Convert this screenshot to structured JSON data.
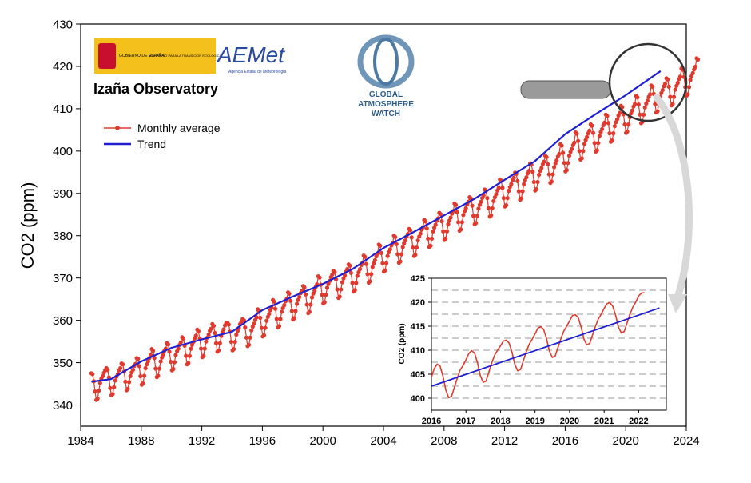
{
  "logos": {
    "gobierno": "GOBIERNO DE ESPAÑA",
    "ministerio": "MINISTERIO PARA LA TRANSICIÓN ECOLÓGICA",
    "aemet": "AEMet",
    "aemet_sub": "Agencia Estatal de Meteorología",
    "gaw": [
      "GLOBAL",
      "ATMOSPHERE",
      "WATCH"
    ]
  },
  "chart_data": [
    {
      "type": "line",
      "title": "Izaña Observatory",
      "xlabel": "",
      "ylabel": "CO2 (ppm)",
      "xlim": [
        1984,
        2024
      ],
      "ylim": [
        335,
        430
      ],
      "xticks": [
        1984,
        1988,
        1992,
        1996,
        2000,
        2004,
        2008,
        2012,
        2016,
        2020,
        2024
      ],
      "yticks": [
        340,
        350,
        360,
        370,
        380,
        390,
        400,
        410,
        420,
        430
      ],
      "legend_position": "top-left",
      "grid": false,
      "series": [
        {
          "name": "Monthly average",
          "color": "#e03a2f",
          "marker": "circle",
          "x_start": 1984.7,
          "x_step": 0.0833,
          "values": [
            347.5,
            347.3,
            345.6,
            343.2,
            341.2,
            341.5,
            343.4,
            345.2,
            346.2,
            346.8,
            347.6,
            348.2,
            348.7,
            348.3,
            346.5,
            344.0,
            342.3,
            342.6,
            344.2,
            345.8,
            346.7,
            347.3,
            348.2,
            348.7,
            349.8,
            349.6,
            347.9,
            345.5,
            343.5,
            343.8,
            345.4,
            346.8,
            347.7,
            348.3,
            349.2,
            349.7,
            351.1,
            350.9,
            349.2,
            346.8,
            344.8,
            345.1,
            346.9,
            348.7,
            349.6,
            350.3,
            351.1,
            351.8,
            353.2,
            352.8,
            351.1,
            348.6,
            346.6,
            346.9,
            348.6,
            350.3,
            351.2,
            351.9,
            352.8,
            353.3,
            354.6,
            354.3,
            352.6,
            350.2,
            348.2,
            348.5,
            350.1,
            351.8,
            352.7,
            353.3,
            354.2,
            354.8,
            356.0,
            355.7,
            354.0,
            351.6,
            349.6,
            349.9,
            351.6,
            353.3,
            354.2,
            354.9,
            355.8,
            356.4,
            357.8,
            357.4,
            355.7,
            353.3,
            351.3,
            351.6,
            353.3,
            355.0,
            355.9,
            356.6,
            357.5,
            358.0,
            359.1,
            358.7,
            357.0,
            354.6,
            352.6,
            352.9,
            354.6,
            356.3,
            357.2,
            357.9,
            358.8,
            359.4,
            359.4,
            359.0,
            357.3,
            354.9,
            352.9,
            353.2,
            354.9,
            356.6,
            357.5,
            358.2,
            359.1,
            359.7,
            360.3,
            360.0,
            358.3,
            355.9,
            353.9,
            354.2,
            355.9,
            357.6,
            358.5,
            359.2,
            360.1,
            360.7,
            362.6,
            362.3,
            360.6,
            358.2,
            356.2,
            356.5,
            358.2,
            359.9,
            360.8,
            361.5,
            362.4,
            363.0,
            364.8,
            364.4,
            362.7,
            360.3,
            358.3,
            358.6,
            360.3,
            362.0,
            362.9,
            363.6,
            364.5,
            365.1,
            366.6,
            366.3,
            364.6,
            362.2,
            360.2,
            360.5,
            362.2,
            363.9,
            364.8,
            365.5,
            366.4,
            367.0,
            368.1,
            367.8,
            366.1,
            363.7,
            361.7,
            362.0,
            363.7,
            365.4,
            366.3,
            367.0,
            367.9,
            368.5,
            370.4,
            370.1,
            368.4,
            366.0,
            364.0,
            364.3,
            366.0,
            367.7,
            368.6,
            369.3,
            370.2,
            370.8,
            371.7,
            371.4,
            369.7,
            367.3,
            365.3,
            365.6,
            367.3,
            369.0,
            369.9,
            370.6,
            371.5,
            372.1,
            373.2,
            372.9,
            371.2,
            368.8,
            366.8,
            367.1,
            368.8,
            370.5,
            371.4,
            372.1,
            373.0,
            373.6,
            375.3,
            375.0,
            373.3,
            370.9,
            368.9,
            369.2,
            370.9,
            372.6,
            373.5,
            374.2,
            375.1,
            375.7,
            377.9,
            377.6,
            375.9,
            373.5,
            371.5,
            371.8,
            373.5,
            375.2,
            376.1,
            376.8,
            377.7,
            378.3,
            380.0,
            379.7,
            378.0,
            375.6,
            373.6,
            373.9,
            375.6,
            377.3,
            378.2,
            378.9,
            379.8,
            380.4,
            381.6,
            381.3,
            379.6,
            377.2,
            375.2,
            375.5,
            377.2,
            378.9,
            379.8,
            380.5,
            381.4,
            382.0,
            383.7,
            383.4,
            381.7,
            379.3,
            377.3,
            377.6,
            379.3,
            381.0,
            381.9,
            382.6,
            383.5,
            384.1,
            385.4,
            385.1,
            383.4,
            381.0,
            379.0,
            379.3,
            381.0,
            382.7,
            383.6,
            384.3,
            385.2,
            385.8,
            387.6,
            387.3,
            385.6,
            383.2,
            381.2,
            381.5,
            383.2,
            384.9,
            385.8,
            386.5,
            387.4,
            388.0,
            389.1,
            388.8,
            387.1,
            384.7,
            382.7,
            383.0,
            384.7,
            386.4,
            387.3,
            388.0,
            388.9,
            389.5,
            390.9,
            390.6,
            388.9,
            386.5,
            384.5,
            384.8,
            386.5,
            388.2,
            389.1,
            389.8,
            390.7,
            391.3,
            393.3,
            393.0,
            391.3,
            388.9,
            386.9,
            387.2,
            388.9,
            390.6,
            391.5,
            392.2,
            393.1,
            393.7,
            394.9,
            394.6,
            392.9,
            390.5,
            388.5,
            388.8,
            390.5,
            392.2,
            393.1,
            393.8,
            394.7,
            395.3,
            397.1,
            396.8,
            395.1,
            392.7,
            390.7,
            391.0,
            392.7,
            394.4,
            395.3,
            396.0,
            396.9,
            397.5,
            398.9,
            398.6,
            396.9,
            394.5,
            392.5,
            392.8,
            394.5,
            396.2,
            397.1,
            397.8,
            398.7,
            399.3,
            401.6,
            401.3,
            399.6,
            397.2,
            395.2,
            395.5,
            397.2,
            398.9,
            399.8,
            400.5,
            401.4,
            402.0,
            404.4,
            404.1,
            402.4,
            400.0,
            398.0,
            398.3,
            400.0,
            401.7,
            402.6,
            403.3,
            404.2,
            404.8,
            406.3,
            406.0,
            404.3,
            401.9,
            399.9,
            400.2,
            401.9,
            403.6,
            404.5,
            405.2,
            406.1,
            406.7,
            408.6,
            408.3,
            406.6,
            404.2,
            402.2,
            402.5,
            404.2,
            405.9,
            406.8,
            407.5,
            408.4,
            409.0,
            410.7,
            410.4,
            408.7,
            406.3,
            404.3,
            404.6,
            406.3,
            408.0,
            408.9,
            409.6,
            410.5,
            411.1,
            413.0,
            412.7,
            411.0,
            408.6,
            406.6,
            406.9,
            408.6,
            410.3,
            411.2,
            411.9,
            412.8,
            413.4,
            415.5,
            415.2,
            413.5,
            411.1,
            409.1,
            409.4,
            411.1,
            412.8,
            413.7,
            414.4,
            415.3,
            415.9,
            417.2,
            416.9,
            415.2,
            412.8,
            410.8,
            411.1,
            412.8,
            414.5,
            415.4,
            416.1,
            417.0,
            417.6,
            419.5,
            419.2,
            417.5,
            415.1,
            413.1,
            413.4,
            415.1,
            416.8,
            417.7,
            418.4,
            419.3,
            419.9,
            421.9,
            421.6
          ]
        },
        {
          "name": "Trend",
          "color": "#1f1fd0",
          "x": [
            1984.7,
            1986,
            1988,
            1990,
            1992,
            1994,
            1996,
            1998,
            2000,
            2002,
            2004,
            2006,
            2008,
            2010,
            2012,
            2014,
            2016,
            2018,
            2020,
            2022.3
          ],
          "values": [
            345.5,
            346.1,
            350.3,
            353.5,
            355.5,
            357.3,
            362.4,
            365.6,
            368.6,
            372.2,
            377.1,
            380.9,
            384.8,
            388.7,
            393.2,
            397.6,
            404.0,
            408.7,
            413.2,
            418.9
          ]
        }
      ]
    },
    {
      "type": "line",
      "title": "",
      "xlabel": "",
      "ylabel": "CO2 (ppm)",
      "xlim": [
        2016,
        2022.8
      ],
      "ylim": [
        397.5,
        425
      ],
      "xticks": [
        2016,
        2017,
        2018,
        2019,
        2020,
        2021,
        2022
      ],
      "yticks": [
        400,
        405,
        410,
        415,
        420,
        425
      ],
      "grid": true,
      "series": [
        {
          "name": "Monthly average",
          "color": "#e03a2f",
          "x_start": 2016.0,
          "x_step": 0.0833,
          "values": [
            404.4,
            406.2,
            407.1,
            406.7,
            404.6,
            401.7,
            400.1,
            400.4,
            402.3,
            404.2,
            405.9,
            406.8,
            408.0,
            409.3,
            409.9,
            409.4,
            407.4,
            404.7,
            403.3,
            403.6,
            405.5,
            407.4,
            409.0,
            410.0,
            410.9,
            411.9,
            412.1,
            411.5,
            409.6,
            407.0,
            405.7,
            406.0,
            407.9,
            409.7,
            411.3,
            412.3,
            413.4,
            414.6,
            414.9,
            414.3,
            412.4,
            409.8,
            408.5,
            408.8,
            410.6,
            412.4,
            414.0,
            415.0,
            416.1,
            417.2,
            417.4,
            416.8,
            414.9,
            412.3,
            411.1,
            411.4,
            413.2,
            415.0,
            416.5,
            417.5,
            418.7,
            419.7,
            419.9,
            419.2,
            417.3,
            414.8,
            413.6,
            413.9,
            415.7,
            417.5,
            419.0,
            420.0,
            421.3,
            421.9,
            422.0
          ]
        },
        {
          "name": "Trend",
          "color": "#1f1fd0",
          "x": [
            2016,
            2022.6
          ],
          "values": [
            402.5,
            418.8
          ]
        }
      ]
    }
  ]
}
